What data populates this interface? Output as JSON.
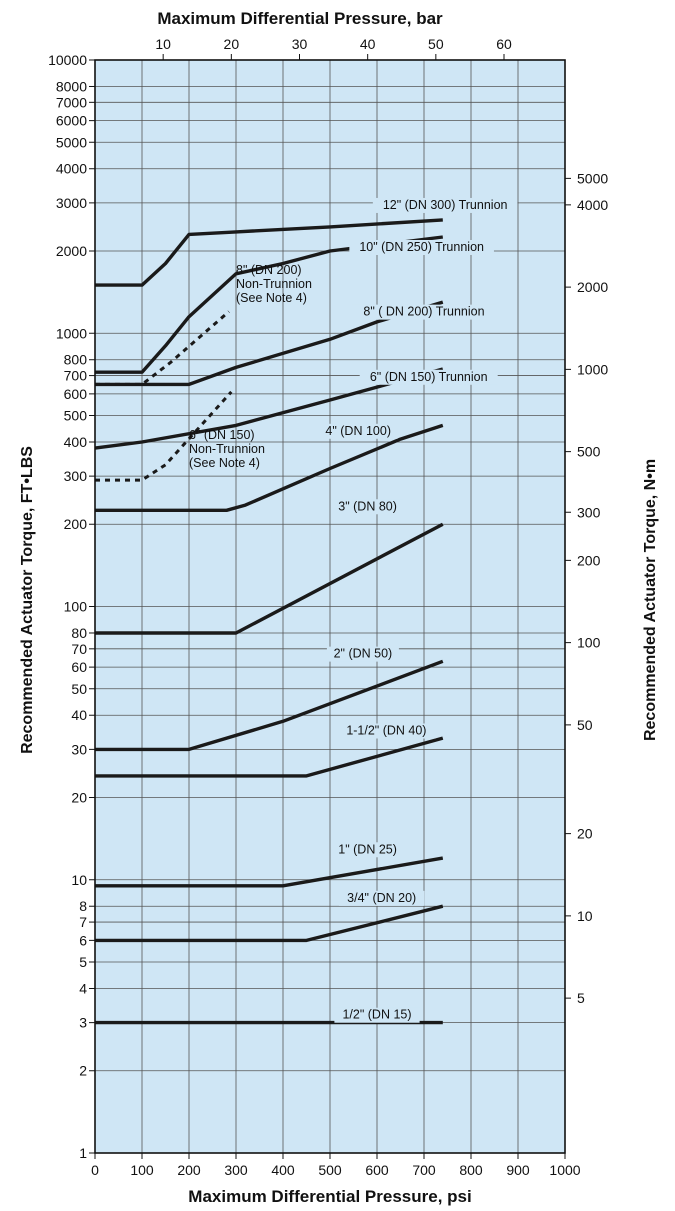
{
  "chart_data": {
    "type": "line",
    "title": "",
    "xlabel": "Maximum Differential Pressure, psi",
    "x2label": "Maximum Differential Pressure, bar",
    "ylabel": "Recommended Actuator Torque, FT•LBS",
    "y2label": "Recommended Actuator Torque, N•m",
    "xlim": [
      0,
      1000
    ],
    "ylim": [
      1,
      10000
    ],
    "yscale": "log",
    "grid": true,
    "background": "#cfe6f5",
    "line_color": "#1a1a1a",
    "x_ticks": [
      "0",
      "100",
      "200",
      "300",
      "400",
      "500",
      "600",
      "700",
      "800",
      "900",
      "1000"
    ],
    "y_ticks": [
      {
        "v": 1,
        "label": "1"
      },
      {
        "v": 2,
        "label": "2"
      },
      {
        "v": 3,
        "label": "3"
      },
      {
        "v": 4,
        "label": "4"
      },
      {
        "v": 5,
        "label": "5"
      },
      {
        "v": 6,
        "label": "6"
      },
      {
        "v": 7,
        "label": "7"
      },
      {
        "v": 8,
        "label": "8"
      },
      {
        "v": 10,
        "label": "10"
      },
      {
        "v": 20,
        "label": "20"
      },
      {
        "v": 30,
        "label": "30"
      },
      {
        "v": 40,
        "label": "40"
      },
      {
        "v": 50,
        "label": "50"
      },
      {
        "v": 60,
        "label": "60"
      },
      {
        "v": 70,
        "label": "70"
      },
      {
        "v": 80,
        "label": "80"
      },
      {
        "v": 100,
        "label": "100"
      },
      {
        "v": 200,
        "label": "200"
      },
      {
        "v": 300,
        "label": "300"
      },
      {
        "v": 400,
        "label": "400"
      },
      {
        "v": 500,
        "label": "500"
      },
      {
        "v": 600,
        "label": "600"
      },
      {
        "v": 700,
        "label": "700"
      },
      {
        "v": 800,
        "label": "800"
      },
      {
        "v": 1000,
        "label": "1000"
      },
      {
        "v": 2000,
        "label": "2000"
      },
      {
        "v": 3000,
        "label": "3000"
      },
      {
        "v": 4000,
        "label": "4000"
      },
      {
        "v": 5000,
        "label": "5000"
      },
      {
        "v": 6000,
        "label": "6000"
      },
      {
        "v": 7000,
        "label": "7000"
      },
      {
        "v": 8000,
        "label": "8000"
      },
      {
        "v": 10000,
        "label": "10000"
      }
    ],
    "x2_ticks": [
      {
        "v": 10,
        "label": "10"
      },
      {
        "v": 20,
        "label": "20"
      },
      {
        "v": 30,
        "label": "30"
      },
      {
        "v": 40,
        "label": "40"
      },
      {
        "v": 50,
        "label": "50"
      },
      {
        "v": 60,
        "label": "60"
      }
    ],
    "y2_ticks": [
      {
        "v": 5,
        "label": "5"
      },
      {
        "v": 10,
        "label": "10"
      },
      {
        "v": 20,
        "label": "20"
      },
      {
        "v": 50,
        "label": "50"
      },
      {
        "v": 100,
        "label": "100"
      },
      {
        "v": 200,
        "label": "200"
      },
      {
        "v": 300,
        "label": "300"
      },
      {
        "v": 500,
        "label": "500"
      },
      {
        "v": 1000,
        "label": "1000"
      },
      {
        "v": 2000,
        "label": "2000"
      },
      {
        "v": 4000,
        "label": "4000"
      },
      {
        "v": 5000,
        "label": "5000"
      }
    ],
    "series": [
      {
        "name": "12\" (DN 300) Trunnion",
        "dashed": false,
        "points": [
          [
            0,
            1500
          ],
          [
            100,
            1500
          ],
          [
            150,
            1800
          ],
          [
            200,
            2300
          ],
          [
            300,
            2350
          ],
          [
            500,
            2450
          ],
          [
            740,
            2600
          ]
        ]
      },
      {
        "name": "10\" (DN 250) Trunnion",
        "dashed": false,
        "points": [
          [
            0,
            720
          ],
          [
            100,
            720
          ],
          [
            150,
            900
          ],
          [
            200,
            1150
          ],
          [
            300,
            1650
          ],
          [
            400,
            1800
          ],
          [
            500,
            2000
          ],
          [
            740,
            2250
          ]
        ]
      },
      {
        "name": "8\" ( DN 200) Trunnion",
        "dashed": false,
        "points": [
          [
            0,
            650
          ],
          [
            200,
            650
          ],
          [
            300,
            750
          ],
          [
            500,
            950
          ],
          [
            600,
            1100
          ],
          [
            740,
            1300
          ]
        ]
      },
      {
        "name": "6\" (DN 150) Trunnion",
        "dashed": false,
        "points": [
          [
            0,
            380
          ],
          [
            100,
            400
          ],
          [
            300,
            460
          ],
          [
            500,
            570
          ],
          [
            740,
            740
          ]
        ]
      },
      {
        "name": "4\" (DN 100)",
        "dashed": false,
        "points": [
          [
            0,
            225
          ],
          [
            280,
            225
          ],
          [
            320,
            235
          ],
          [
            500,
            320
          ],
          [
            650,
            410
          ],
          [
            740,
            460
          ]
        ]
      },
      {
        "name": "3\" (DN 80)",
        "dashed": false,
        "points": [
          [
            0,
            80
          ],
          [
            300,
            80
          ],
          [
            740,
            200
          ]
        ]
      },
      {
        "name": "2\" (DN 50)",
        "dashed": false,
        "points": [
          [
            0,
            30
          ],
          [
            200,
            30
          ],
          [
            400,
            38
          ],
          [
            740,
            63
          ]
        ]
      },
      {
        "name": "1-1/2\" (DN 40)",
        "dashed": false,
        "points": [
          [
            0,
            24
          ],
          [
            450,
            24
          ],
          [
            740,
            33
          ]
        ]
      },
      {
        "name": "1\" (DN 25)",
        "dashed": false,
        "points": [
          [
            0,
            9.5
          ],
          [
            400,
            9.5
          ],
          [
            740,
            12
          ]
        ]
      },
      {
        "name": "3/4\" (DN 20)",
        "dashed": false,
        "points": [
          [
            0,
            6
          ],
          [
            450,
            6
          ],
          [
            740,
            8
          ]
        ]
      },
      {
        "name": "1/2\" (DN 15)",
        "dashed": false,
        "points": [
          [
            0,
            3
          ],
          [
            740,
            3
          ]
        ]
      },
      {
        "name": "8\" (DN 200) Non-Trunnion",
        "dashed": true,
        "points": [
          [
            0,
            650
          ],
          [
            100,
            650
          ],
          [
            160,
            780
          ],
          [
            285,
            1200
          ]
        ]
      },
      {
        "name": "6\" (DN 150) Non-Trunnion",
        "dashed": true,
        "points": [
          [
            0,
            290
          ],
          [
            100,
            290
          ],
          [
            150,
            330
          ],
          [
            290,
            610
          ]
        ]
      }
    ],
    "annotations": [
      {
        "series": 0,
        "lines": [
          "12\" (DN 300) Trunnion"
        ],
        "x": 745,
        "y": 2850
      },
      {
        "series": 1,
        "lines": [
          "10\" (DN 250) Trunnion"
        ],
        "x": 695,
        "y": 2000
      },
      {
        "series": 2,
        "lines": [
          "8\" ( DN 200) Trunnion"
        ],
        "x": 700,
        "y": 1160
      },
      {
        "series": 3,
        "lines": [
          "6\" (DN 150) Trunnion"
        ],
        "x": 710,
        "y": 670
      },
      {
        "series": 4,
        "lines": [
          "4\" (DN 100)"
        ],
        "x": 560,
        "y": 425
      },
      {
        "series": 5,
        "lines": [
          "3\" (DN 80)"
        ],
        "x": 580,
        "y": 225
      },
      {
        "series": 6,
        "lines": [
          "2\" (DN 50)"
        ],
        "x": 570,
        "y": 65
      },
      {
        "series": 7,
        "lines": [
          "1-1/2\" (DN 40)"
        ],
        "x": 620,
        "y": 34
      },
      {
        "series": 8,
        "lines": [
          "1\" (DN 25)"
        ],
        "x": 580,
        "y": 12.5
      },
      {
        "series": 9,
        "lines": [
          "3/4\" (DN 20)"
        ],
        "x": 610,
        "y": 8.3
      },
      {
        "series": 10,
        "lines": [
          "1/2\" (DN 15)"
        ],
        "x": 600,
        "y": 3.1
      },
      {
        "series": 11,
        "lines": [
          "8\" (DN 200)",
          "Non-Trunnion",
          "(See Note 4)"
        ],
        "x": 300,
        "y": 1650
      },
      {
        "series": 12,
        "lines": [
          "6\" (DN 150)",
          "Non-Trunnion",
          "(See Note 4)"
        ],
        "x": 200,
        "y": 410
      }
    ]
  }
}
